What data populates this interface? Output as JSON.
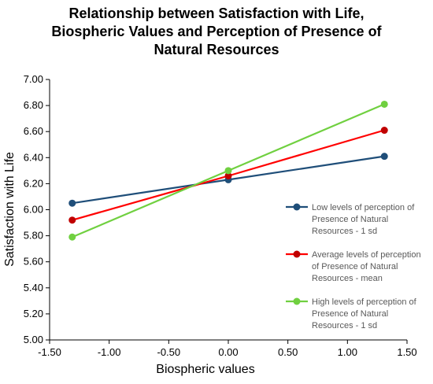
{
  "chart_data": {
    "type": "line",
    "title_lines": [
      "Relationship between Satisfaction with Life,",
      "Biospheric Values and Perception of Presence of",
      "Natural Resources"
    ],
    "xlabel": "Biospheric values",
    "ylabel": "Satisfaction with Life",
    "xlim": [
      -1.5,
      1.5
    ],
    "ylim": [
      5.0,
      7.0
    ],
    "xticks": [
      "-1.50",
      "-1.00",
      "-0.50",
      "0.00",
      "0.50",
      "1.00",
      "1.50"
    ],
    "yticks": [
      "5.00",
      "5.20",
      "5.40",
      "5.60",
      "5.80",
      "6.00",
      "6.20",
      "6.40",
      "6.60",
      "6.80",
      "7.00"
    ],
    "grid": false,
    "legend_position": "right",
    "x": [
      -1.31,
      0.0,
      1.31
    ],
    "series": [
      {
        "name_lines": [
          "Low levels of perception of",
          "Presence of Natural",
          "Resources  - 1 sd"
        ],
        "values": [
          6.05,
          6.23,
          6.41
        ],
        "color": "#1F4E79"
      },
      {
        "name_lines": [
          "Average levels of perception",
          "of Presence of Natural",
          "Resources - mean"
        ],
        "values": [
          5.92,
          6.26,
          6.61
        ],
        "color": "#FF0000",
        "marker_color": "#C00000"
      },
      {
        "name_lines": [
          "High levels of perception of",
          "Presence of Natural",
          "Resources - 1 sd"
        ],
        "values": [
          5.79,
          6.3,
          6.81
        ],
        "color": "#70D040"
      }
    ]
  }
}
